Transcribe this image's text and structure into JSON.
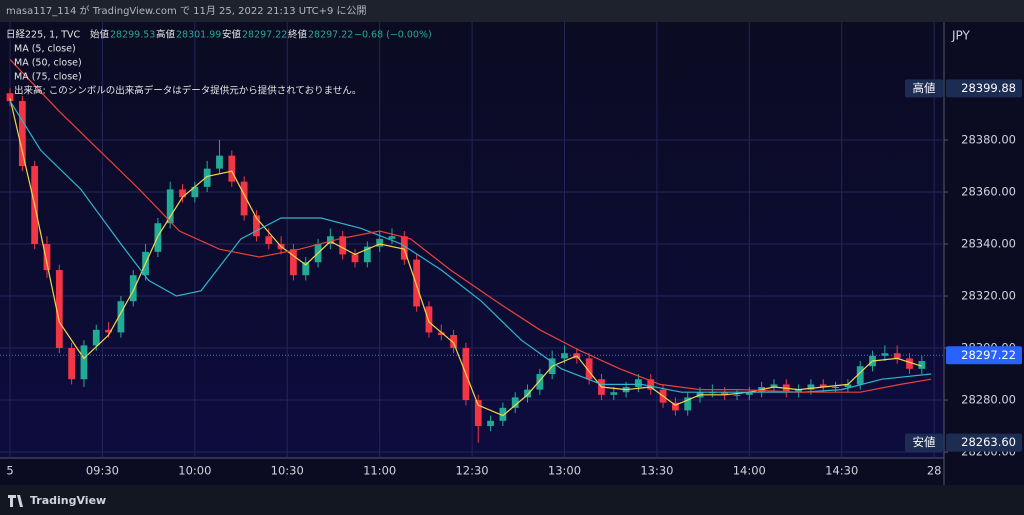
{
  "header": "masa117_114 が TradingView.com で 11月 25, 2022 21:13 UTC+9 に公開",
  "footer": "TradingView",
  "chart_data": {
    "type": "candlestick",
    "symbol": "日経225, 1, TVC",
    "ohlc_legend": [
      {
        "label": "始値",
        "value": 28299.53
      },
      {
        "label": "高値",
        "value": 28301.99
      },
      {
        "label": "安値",
        "value": 28297.22
      },
      {
        "label": "終値",
        "value": 28297.22
      }
    ],
    "change": "−0.68 (−0.00%)",
    "volume_note": "出来高: このシンボルの出来高データはデータ提供元から提供されておりません。",
    "currency": "JPY",
    "x": [
      0,
      4,
      8,
      12,
      16,
      20,
      24,
      28,
      32,
      36,
      40,
      44,
      48,
      52,
      56,
      60,
      64,
      68,
      72,
      76,
      80,
      84,
      88,
      92,
      96,
      100,
      104,
      108,
      112,
      116,
      120,
      124,
      128,
      132,
      136,
      140,
      144,
      148,
      152,
      156,
      160,
      164,
      168,
      172,
      176,
      180,
      184,
      188,
      192,
      196,
      200,
      204,
      208,
      212,
      216,
      220,
      224,
      228,
      232,
      236,
      240,
      244,
      248,
      252,
      256,
      260,
      264,
      268,
      272,
      276,
      280,
      284,
      288,
      292,
      296
    ],
    "open": [
      28398,
      28395,
      28370,
      28340,
      28330,
      28300,
      28288,
      28301,
      28307,
      28306,
      28318,
      28328,
      28337,
      28348,
      28361,
      28358,
      28362,
      28369,
      28374,
      28364,
      28351,
      28343,
      28340,
      28338,
      28328,
      28333,
      28340,
      28343,
      28336,
      28333,
      28339,
      28342,
      28343,
      28334,
      28316,
      28306,
      28305,
      28300,
      28280,
      28270,
      28272,
      28277,
      28281,
      28284,
      28290,
      28296,
      28298,
      28296,
      28288,
      28282,
      28283,
      28285,
      28288,
      28284,
      28279,
      28276,
      28281,
      28283,
      28283,
      28282,
      28282,
      28283,
      28285,
      28286,
      28283,
      28284,
      28286,
      28285,
      28285,
      28286,
      28293,
      28297,
      28298,
      28296,
      28292
    ],
    "high": [
      28399.88,
      28397,
      28372,
      28343,
      28332,
      28302,
      28303,
      28309,
      28310,
      28320,
      28330,
      28340,
      28350,
      28364,
      28363,
      28364,
      28372,
      28380,
      28376,
      28366,
      28353,
      28346,
      28343,
      28340,
      28335,
      28342,
      28346,
      28345,
      28338,
      28341,
      28345,
      28346,
      28345,
      28336,
      28318,
      28309,
      28307,
      28302,
      28282,
      28274,
      28279,
      28283,
      28286,
      28292,
      28299,
      28301,
      28300,
      28298,
      28290,
      28285,
      28287,
      28290,
      28290,
      28286,
      28281,
      28283,
      28285,
      28286,
      28285,
      28284,
      28285,
      28287,
      28288,
      28288,
      28286,
      28288,
      28288,
      28287,
      28288,
      28295,
      28299,
      28301,
      28301,
      28298,
      28297
    ],
    "low": [
      28393,
      28368,
      28338,
      28327,
      28298,
      28286,
      28285,
      28299,
      28304,
      28304,
      28316,
      28326,
      28335,
      28346,
      28356,
      28356,
      28360,
      28367,
      28362,
      28349,
      28341,
      28338,
      28336,
      28326,
      28326,
      28331,
      28338,
      28334,
      28331,
      28331,
      28337,
      28340,
      28332,
      28314,
      28304,
      28303,
      28298,
      28278,
      28263.6,
      28268,
      28270,
      28275,
      28279,
      28282,
      28288,
      28294,
      28294,
      28286,
      28280,
      28280,
      28281,
      28283,
      28282,
      28277,
      28274,
      28274,
      28279,
      28281,
      28280,
      28280,
      28280,
      28281,
      28283,
      28281,
      28281,
      28282,
      28283,
      28283,
      28283,
      28284,
      28291,
      28295,
      28294,
      28290,
      28290
    ],
    "close": [
      28395,
      28370,
      28340,
      28330,
      28300,
      28288,
      28301,
      28307,
      28306,
      28318,
      28328,
      28337,
      28348,
      28361,
      28358,
      28362,
      28369,
      28374,
      28364,
      28351,
      28343,
      28340,
      28338,
      28328,
      28333,
      28340,
      28343,
      28336,
      28333,
      28339,
      28342,
      28343,
      28334,
      28316,
      28306,
      28305,
      28300,
      28280,
      28270,
      28272,
      28277,
      28281,
      28284,
      28290,
      28296,
      28298,
      28296,
      28288,
      28282,
      28283,
      28285,
      28288,
      28284,
      28279,
      28276,
      28281,
      28283,
      28283,
      28282,
      28282,
      28283,
      28285,
      28286,
      28283,
      28284,
      28286,
      28285,
      28285,
      28286,
      28293,
      28297,
      28298,
      28296,
      28292,
      28295
    ],
    "up_color": "#22ab94",
    "down_color": "#f23645",
    "series": [
      {
        "name": "MA (5, close)",
        "color": "#f7d54a",
        "x": [
          0,
          8,
          16,
          24,
          32,
          40,
          48,
          56,
          64,
          72,
          80,
          88,
          96,
          104,
          112,
          120,
          128,
          136,
          144,
          152,
          160,
          168,
          176,
          184,
          192,
          200,
          208,
          216,
          224,
          232,
          240,
          248,
          256,
          264,
          272,
          280,
          288,
          296
        ],
        "values": [
          28396,
          28355,
          28310,
          28296,
          28305,
          28322,
          28343,
          28358,
          28366,
          28368,
          28350,
          28339,
          28332,
          28341,
          28336,
          28340,
          28338,
          28310,
          28302,
          28278,
          28274,
          28282,
          28293,
          28297,
          28285,
          28284,
          28285,
          28278,
          28282,
          28282,
          28283,
          28285,
          28284,
          28285,
          28286,
          28295,
          28296,
          28293
        ]
      },
      {
        "name": "MA (50, close)",
        "color": "#2fb5c9",
        "x": [
          0,
          10,
          23,
          36,
          45,
          54,
          62,
          75,
          88,
          101,
          114,
          127,
          140,
          153,
          166,
          179,
          192,
          205,
          218,
          231,
          244,
          257,
          270,
          283,
          299
        ],
        "values": [
          28395,
          28376,
          28361,
          28340,
          28326,
          28320,
          28322,
          28342,
          28350,
          28350,
          28346,
          28340,
          28330,
          28318,
          28303,
          28292,
          28286,
          28286,
          28283,
          28283,
          28283,
          28283,
          28284,
          28288,
          28290
        ]
      },
      {
        "name": "MA (75, close)",
        "color": "#e8423a",
        "x": [
          0,
          16,
          29,
          42,
          55,
          68,
          81,
          94,
          107,
          120,
          130,
          143,
          159,
          172,
          185,
          198,
          211,
          224,
          237,
          257,
          276,
          289,
          299
        ],
        "values": [
          28411,
          28391,
          28376,
          28361,
          28345,
          28338,
          28335,
          28338,
          28342,
          28345,
          28342,
          28330,
          28317,
          28307,
          28299,
          28292,
          28286,
          28284,
          28284,
          28283,
          28283,
          28286,
          28288
        ]
      }
    ],
    "xlim": [
      -3.25,
      303.2
    ],
    "xticks": [
      {
        "value": 0,
        "label": "5"
      },
      {
        "value": 30,
        "label": "09:30"
      },
      {
        "value": 60,
        "label": "10:00"
      },
      {
        "value": 90,
        "label": "10:30"
      },
      {
        "value": 120,
        "label": "11:00"
      },
      {
        "value": 150,
        "label": "12:30"
      },
      {
        "value": 180,
        "label": "13:00"
      },
      {
        "value": 210,
        "label": "13:30"
      },
      {
        "value": 240,
        "label": "14:00"
      },
      {
        "value": 270,
        "label": "14:30"
      },
      {
        "value": 300,
        "label": "28"
      }
    ],
    "ylim": [
      28257.7,
      28425.4
    ],
    "yticks": [
      {
        "value": 28260,
        "label": "28260.00"
      },
      {
        "value": 28280,
        "label": "28280.00"
      },
      {
        "value": 28300,
        "label": "28300.00"
      },
      {
        "value": 28320,
        "label": "28320.00"
      },
      {
        "value": 28340,
        "label": "28340.00"
      },
      {
        "value": 28360,
        "label": "28360.00"
      },
      {
        "value": 28380,
        "label": "28380.00"
      }
    ],
    "markers": [
      {
        "label": "高値",
        "value": 28399.88
      },
      {
        "label": "安値",
        "value": 28263.6,
        "value_label": "28263.60"
      }
    ],
    "last_price": 28297.22,
    "grid": true
  }
}
